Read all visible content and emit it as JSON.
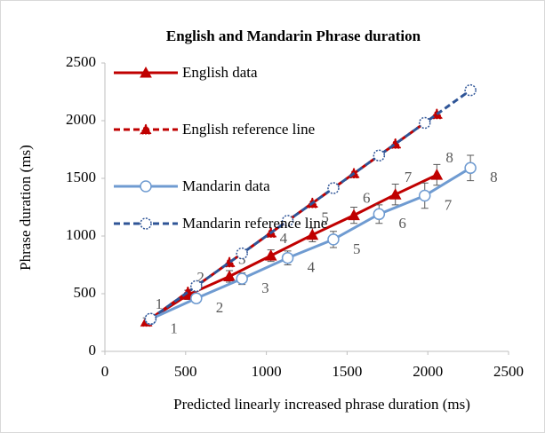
{
  "chart_data": {
    "type": "line",
    "title": "English and Mandarin Phrase duration",
    "x_label": "Predicted linearly increased phrase duration (ms)",
    "y_label": "Phrase duration (ms)",
    "xlim": [
      0,
      2500
    ],
    "xticks": [
      0,
      500,
      1000,
      1500,
      2000,
      2500
    ],
    "ylim": [
      0,
      2500
    ],
    "yticks": [
      0,
      500,
      1000,
      1500,
      2000,
      2500
    ],
    "legend": "upper-left",
    "series": [
      {
        "name": "English data",
        "color": "#c00000",
        "marker": "triangle",
        "dashed": false,
        "x": [
          257,
          514,
          771,
          1028,
          1285,
          1542,
          1799,
          2056
        ],
        "values": [
          260,
          490,
          650,
          830,
          1010,
          1180,
          1360,
          1530
        ],
        "errors": [
          30,
          40,
          50,
          50,
          60,
          70,
          90,
          90
        ],
        "point_labels": [
          "1",
          "2",
          "3",
          "4",
          "5",
          "6",
          "7",
          "8"
        ]
      },
      {
        "name": "English reference line",
        "color": "#c00000",
        "marker": "triangle",
        "dashed": true,
        "x": [
          257,
          514,
          771,
          1028,
          1285,
          1542,
          1799,
          2056
        ],
        "values": [
          257,
          514,
          771,
          1028,
          1285,
          1542,
          1799,
          2056
        ]
      },
      {
        "name": "Mandarin data",
        "color": "#6f9bd1",
        "marker": "circle",
        "dashed": false,
        "x": [
          283,
          566,
          849,
          1132,
          1415,
          1698,
          1981,
          2264
        ],
        "values": [
          280,
          460,
          630,
          810,
          970,
          1190,
          1350,
          1590
        ],
        "errors": [
          30,
          40,
          50,
          60,
          70,
          80,
          110,
          110
        ],
        "point_labels": [
          "1",
          "2",
          "3",
          "4",
          "5",
          "6",
          "7",
          "8"
        ]
      },
      {
        "name": "Mandarin reference line",
        "color": "#2f5597",
        "marker": "circle",
        "dashed": true,
        "x": [
          283,
          566,
          849,
          1132,
          1415,
          1698,
          1981,
          2264
        ],
        "values": [
          283,
          566,
          849,
          1132,
          1415,
          1698,
          1981,
          2264
        ]
      }
    ]
  }
}
